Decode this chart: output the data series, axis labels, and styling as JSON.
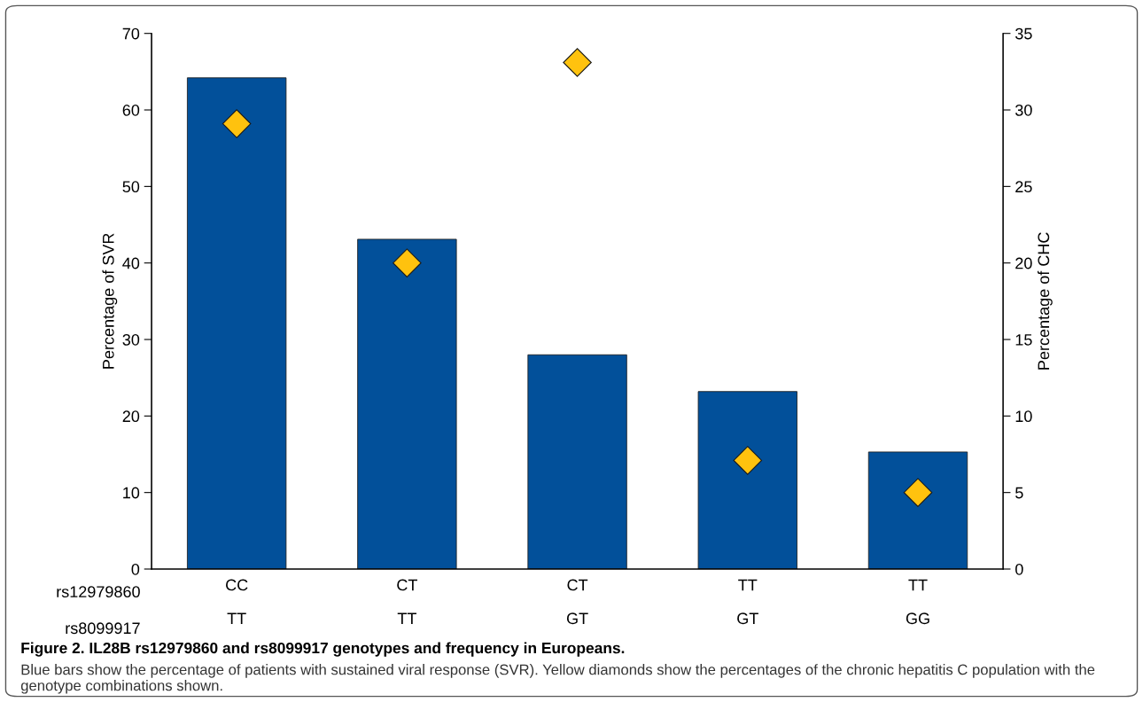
{
  "chart_data": {
    "type": "bar",
    "ylabel": "Percentage of SVR",
    "y2label": "Percentage of CHC",
    "categories": [
      "CC\nTT",
      "CT\nTT",
      "CT\nGT",
      "TT\nGT",
      "TT\nGG"
    ],
    "series": [
      {
        "color": "#02509a",
        "values": [
          64.2,
          43.1,
          28.0,
          23.2,
          15.3
        ]
      },
      {
        "type": "scatter",
        "axis": "y2",
        "color": "#ffc20e",
        "marker": "diamond",
        "values": [
          29.1,
          20.0,
          33.1,
          7.1,
          5.0
        ]
      }
    ],
    "ylim": [
      0,
      70
    ],
    "yticks": [
      0,
      10,
      20,
      30,
      40,
      50,
      60,
      70
    ],
    "y2lim": [
      0,
      35
    ],
    "y2ticks": [
      0,
      5,
      10,
      15,
      20,
      25,
      30,
      35
    ],
    "annotations": [
      "rs12979860",
      "rs8099917",
      "Figure 2. IL28B rs12979860 and rs8099917 genotypes and frequency in Europeans.",
      "Blue bars show the percentage of patients with sustained viral response (SVR). Yellow diamonds show the percentages of the chronic hepatitis C population with the genotype combinations shown."
    ]
  }
}
